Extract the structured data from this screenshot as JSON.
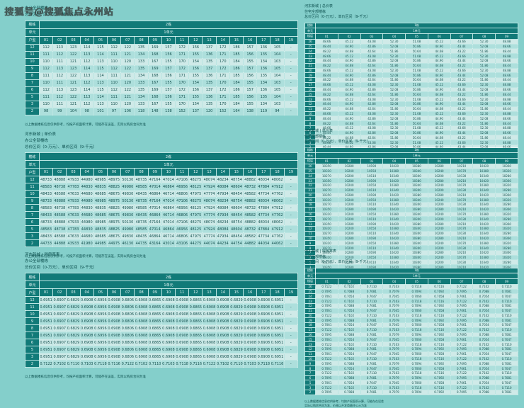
{
  "page": {
    "background": "#84cfcb",
    "header_color": "#117a78",
    "row_light": "#cfeae8",
    "row_dark": "#addfdc"
  },
  "watermark": {
    "text": "搜狐号@搜狐焦点永州站"
  },
  "panels": [
    {
      "side": "left",
      "titles": [
        "办公全部楼栋",
        "总价区间（0-万元）、单价区间（9-千元）"
      ],
      "table": {
        "corner_labels": [
          "楼栋",
          "单元",
          "户型"
        ],
        "building": "2栋",
        "unit": "1单元",
        "columns": [
          "01",
          "02",
          "03",
          "04",
          "05",
          "06",
          "07",
          "08",
          "09",
          "10",
          "11",
          "12",
          "13",
          "14",
          "15",
          "16",
          "17",
          "18",
          "19"
        ],
        "variants": {
          "A": [
            "112",
            "113",
            "123",
            "114",
            "115",
            "112",
            "122",
            "135",
            "169",
            "157",
            "172",
            "156",
            "137",
            "172",
            "186",
            "157",
            "136",
            "105",
            "-"
          ],
          "B": [
            "111",
            "112",
            "122",
            "113",
            "114",
            "111",
            "121",
            "134",
            "168",
            "156",
            "171",
            "155",
            "136",
            "171",
            "185",
            "156",
            "135",
            "104",
            "-"
          ],
          "C": [
            "110",
            "111",
            "121",
            "112",
            "113",
            "110",
            "120",
            "133",
            "167",
            "155",
            "170",
            "154",
            "135",
            "170",
            "184",
            "155",
            "134",
            "103",
            "-"
          ],
          "S": [
            "98",
            "99",
            "104",
            "98",
            "101",
            "97",
            "106",
            "118",
            "148",
            "138",
            "152",
            "137",
            "120",
            "152",
            "164",
            "138",
            "119",
            "94",
            "-"
          ]
        },
        "rows": [
          [
            "12",
            "A"
          ],
          [
            "11",
            "B"
          ],
          [
            "10",
            "C"
          ],
          [
            "9",
            "A"
          ],
          [
            "8",
            "B"
          ],
          [
            "7",
            "C"
          ],
          [
            "6",
            "A"
          ],
          [
            "5",
            "B"
          ],
          [
            "3",
            "C"
          ],
          [
            "2",
            "S"
          ]
        ]
      },
      "footnotes": [
        "以上数据楼栋信息仅供参考，均按产权面积计算，可能存在误差，实际以购房合同为准"
      ]
    },
    {
      "side": "left",
      "titles": [
        "河东新城 | 单价表",
        "办公全部楼栋",
        "总价区间（0-万元）、单价区间（9-千元）"
      ],
      "table": {
        "corner_labels": [
          "楼栋",
          "单元",
          "户型"
        ],
        "building": "2栋",
        "unit": "1单元",
        "columns": [
          "01",
          "02",
          "03",
          "04",
          "05",
          "06",
          "07",
          "08",
          "09",
          "10",
          "11",
          "12",
          "13",
          "14",
          "15",
          "16",
          "17",
          "18",
          "19"
        ],
        "variants": {
          "A": [
            "48733",
            "48888",
            "47933",
            "44980",
            "48985",
            "48975",
            "50130",
            "48735",
            "47164",
            "47014",
            "47106",
            "48275",
            "48074",
            "48234",
            "48754",
            "48882",
            "48034",
            "48062",
            "-"
          ],
          "B": [
            "48583",
            "48738",
            "47783",
            "44830",
            "48835",
            "48825",
            "49980",
            "48585",
            "47014",
            "46864",
            "46956",
            "48125",
            "47924",
            "48084",
            "48604",
            "48732",
            "47884",
            "47912",
            "-"
          ],
          "C": [
            "48433",
            "48588",
            "47633",
            "44680",
            "48685",
            "48675",
            "49830",
            "48435",
            "46864",
            "46714",
            "46806",
            "47975",
            "47774",
            "47934",
            "48454",
            "48582",
            "47734",
            "47762",
            "-"
          ],
          "S": [
            "44733",
            "44888",
            "43933",
            "41980",
            "44985",
            "44975",
            "46130",
            "44735",
            "43164",
            "43014",
            "43106",
            "44275",
            "44074",
            "44234",
            "44754",
            "44882",
            "44034",
            "44062",
            "-"
          ]
        },
        "rows": [
          [
            "12",
            "A"
          ],
          [
            "11",
            "B"
          ],
          [
            "10",
            "C"
          ],
          [
            "9",
            "A"
          ],
          [
            "8",
            "B"
          ],
          [
            "7",
            "C"
          ],
          [
            "6",
            "A"
          ],
          [
            "5",
            "B"
          ],
          [
            "3",
            "C"
          ],
          [
            "2",
            "S"
          ]
        ]
      },
      "footnotes": [
        "以上数据楼栋信息仅供参考，均按产权面积计算，可能存在误差，实际以购房合同为准"
      ]
    },
    {
      "side": "left",
      "titles": [
        "河东新城 | 得房率表",
        "办公全部楼栋",
        "总价区间（0-万元）、单价区间（9-千元）"
      ],
      "table": {
        "corner_labels": [
          "楼栋",
          "单元",
          "户型"
        ],
        "building": "2栋",
        "unit": "1单元",
        "columns": [
          "01",
          "02",
          "03",
          "04",
          "05",
          "06",
          "07",
          "08",
          "09",
          "10",
          "11",
          "12",
          "13",
          "14",
          "15",
          "16",
          "17",
          "18",
          "19"
        ],
        "variants": {
          "A": [
            "0.6951",
            "0.6907",
            "0.6829",
            "0.6908",
            "0.6956",
            "0.6908",
            "0.6806",
            "0.6908",
            "0.6865",
            "0.6908",
            "0.6908",
            "0.6865",
            "0.6908",
            "0.6908",
            "0.6829",
            "0.6908",
            "0.6908",
            "0.6951",
            "-"
          ],
          "S": [
            "0.7122",
            "0.7102",
            "0.7110",
            "0.7103",
            "0.7118",
            "0.7116",
            "0.7122",
            "0.7102",
            "0.7110",
            "0.7103",
            "0.7118",
            "0.7116",
            "0.7122",
            "0.7102",
            "0.7110",
            "0.7103",
            "0.7118",
            "0.7116",
            "-"
          ]
        },
        "rows": [
          [
            "12",
            "A"
          ],
          [
            "11",
            "A"
          ],
          [
            "10",
            "A"
          ],
          [
            "9",
            "A"
          ],
          [
            "8",
            "A"
          ],
          [
            "7",
            "A"
          ],
          [
            "6",
            "A"
          ],
          [
            "5",
            "A"
          ],
          [
            "3",
            "A"
          ],
          [
            "2",
            "S"
          ]
        ]
      },
      "footnotes": [
        "以上数据楼栋信息仅供参考，均按产权面积计算，可能存在误差，实际以购房合同为准"
      ]
    },
    {
      "side": "right",
      "titles": [
        "河东新城 | 总价表",
        "住宅全部楼栋",
        "总价区间（0-万元）、单价区间（9-千元）"
      ],
      "table": {
        "corner_labels": [
          "楼栋",
          "单元",
          "楼层"
        ],
        "building": "1栋",
        "unit": "1单元",
        "columns": [
          "01",
          "02",
          "03",
          "04",
          "05",
          "06",
          "07",
          "08",
          "09"
        ],
        "variants": {
          "A": [
            "48.66",
            "45.12",
            "43.08",
            "52.30",
            "51.08",
            "45.12",
            "43.66",
            "52.30",
            "48.88"
          ],
          "B": [
            "48.44",
            "44.90",
            "42.86",
            "52.08",
            "50.86",
            "44.90",
            "43.44",
            "52.08",
            "48.66"
          ],
          "C": [
            "48.22",
            "44.68",
            "42.64",
            "51.86",
            "50.64",
            "44.68",
            "43.22",
            "51.86",
            "48.44"
          ]
        },
        "rows": [
          [
            "26",
            "A"
          ],
          [
            "25",
            "B"
          ],
          [
            "24",
            "C"
          ],
          [
            "23",
            "A"
          ],
          [
            "22",
            "B"
          ],
          [
            "21",
            "C"
          ],
          [
            "20",
            "A"
          ],
          [
            "19",
            "B"
          ],
          [
            "18",
            "C"
          ],
          [
            "17",
            "A"
          ],
          [
            "16",
            "B"
          ],
          [
            "15",
            "C"
          ],
          [
            "13",
            "A"
          ],
          [
            "12",
            "B"
          ],
          [
            "11",
            "C"
          ],
          [
            "10",
            "A"
          ],
          [
            "9",
            "B"
          ],
          [
            "8",
            "C"
          ],
          [
            "7",
            "A"
          ],
          [
            "6",
            "B"
          ],
          [
            "5",
            "C"
          ],
          [
            "3",
            "A"
          ],
          [
            "2",
            "B"
          ]
        ]
      },
      "footnotes": [
        "以上数据楼栋信息仅供参考，均按产权面积计算，可能存在误差",
        "实际以购房合同为准，价格以开发商最终公示为准"
      ]
    },
    {
      "side": "right",
      "titles": [
        "河东新城 | 单价表",
        "住宅全部楼栋",
        "总价区间（0-万元）、单价区间（9-千元）"
      ],
      "table": {
        "corner_labels": [
          "楼栋",
          "单元",
          "楼层"
        ],
        "building": "1栋",
        "unit": "1单元",
        "columns": [
          "01",
          "02",
          "03",
          "04",
          "05",
          "06",
          "07",
          "08",
          "09"
        ],
        "variants": {
          "A": [
            "10350",
            "10280",
            "10190",
            "10420",
            "10380",
            "10280",
            "10210",
            "10420",
            "10360"
          ],
          "B": [
            "10310",
            "10240",
            "10150",
            "10380",
            "10340",
            "10240",
            "10170",
            "10380",
            "10320"
          ],
          "C": [
            "10270",
            "10200",
            "10110",
            "10340",
            "10300",
            "10200",
            "10130",
            "10340",
            "10280"
          ]
        },
        "rows": [
          [
            "26",
            "A"
          ],
          [
            "25",
            "B"
          ],
          [
            "24",
            "C"
          ],
          [
            "23",
            "A"
          ],
          [
            "22",
            "B"
          ],
          [
            "21",
            "C"
          ],
          [
            "20",
            "A"
          ],
          [
            "19",
            "B"
          ],
          [
            "18",
            "C"
          ],
          [
            "17",
            "A"
          ],
          [
            "16",
            "B"
          ],
          [
            "15",
            "C"
          ],
          [
            "13",
            "A"
          ],
          [
            "12",
            "B"
          ],
          [
            "11",
            "C"
          ],
          [
            "10",
            "A"
          ],
          [
            "9",
            "B"
          ],
          [
            "8",
            "C"
          ],
          [
            "7",
            "A"
          ],
          [
            "6",
            "B"
          ],
          [
            "5",
            "C"
          ],
          [
            "3",
            "A"
          ],
          [
            "2",
            "B"
          ]
        ]
      },
      "footnotes": [
        "以上数据楼栋信息仅供参考，均按产权面积计算，可能存在误差",
        "实际以购房合同为准，价格以开发商最终公示为准"
      ]
    },
    {
      "side": "right",
      "titles": [
        "河东新城 | 得房率表",
        "住宅全部楼栋",
        "总价区间（0-万元）、单价区间（9-千元）"
      ],
      "table": {
        "corner_labels": [
          "楼栋",
          "单元",
          "楼层"
        ],
        "building": "1栋",
        "unit": "1单元",
        "columns": [
          "01",
          "02",
          "03",
          "04",
          "05",
          "06",
          "07",
          "08",
          "09"
        ],
        "variants": {
          "A": [
            "0.7122",
            "0.7102",
            "0.7110",
            "0.7103",
            "0.7118",
            "0.7116",
            "0.7122",
            "0.7102",
            "0.7110"
          ],
          "B": [
            "0.7095",
            "0.7088",
            "0.7081",
            "0.7079",
            "0.7094",
            "0.7092",
            "0.7095",
            "0.7088",
            "0.7081"
          ],
          "C": [
            "0.7061",
            "0.7054",
            "0.7047",
            "0.7045",
            "0.7060",
            "0.7058",
            "0.7061",
            "0.7054",
            "0.7047"
          ]
        },
        "rows": [
          [
            "26",
            "A"
          ],
          [
            "25",
            "B"
          ],
          [
            "24",
            "C"
          ],
          [
            "23",
            "A"
          ],
          [
            "22",
            "B"
          ],
          [
            "21",
            "C"
          ],
          [
            "20",
            "A"
          ],
          [
            "19",
            "B"
          ],
          [
            "18",
            "C"
          ],
          [
            "17",
            "A"
          ],
          [
            "16",
            "B"
          ],
          [
            "15",
            "C"
          ],
          [
            "13",
            "A"
          ],
          [
            "12",
            "B"
          ],
          [
            "11",
            "C"
          ],
          [
            "10",
            "A"
          ],
          [
            "9",
            "B"
          ],
          [
            "8",
            "C"
          ],
          [
            "7",
            "A"
          ],
          [
            "6",
            "B"
          ],
          [
            "5",
            "C"
          ],
          [
            "3",
            "A"
          ],
          [
            "2",
            "B"
          ]
        ]
      },
      "footnotes": [
        "以上数据楼栋信息仅供参考，均按产权面积计算，可能存在误差",
        "实际以购房合同为准，价格以开发商最终公示为准"
      ]
    }
  ]
}
